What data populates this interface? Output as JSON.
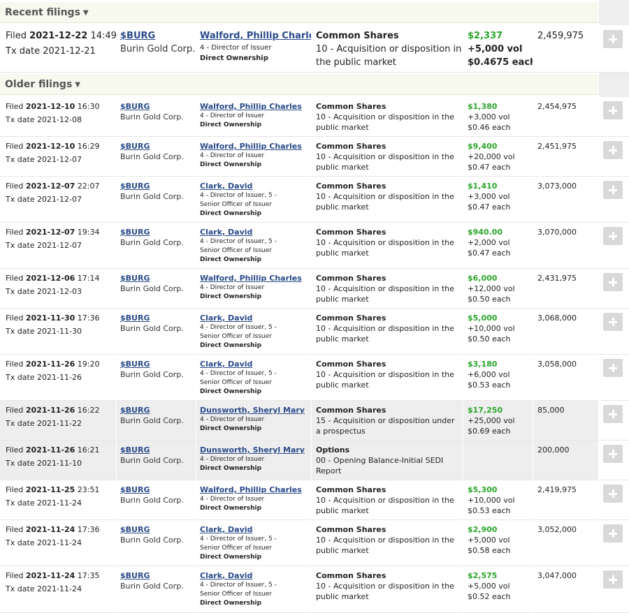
{
  "sections": {
    "recent_label": "Recent filings",
    "older_label": "Older filings"
  },
  "recent": [
    {
      "filed_prefix": "Filed",
      "filed_date": "2021-12-22",
      "filed_time": "14:49",
      "tx_prefix": "Tx date",
      "tx_date": "2021-12-21",
      "ticker": "$BURG",
      "company": "Burin Gold Corp.",
      "insider": "Walford, Phillip Charles",
      "relationship": "4 - Director of Issuer",
      "ownership": "Direct Ownership",
      "security": "Common Shares",
      "transaction": "10 - Acquisition or disposition in the public market",
      "amount": "$2,337",
      "volume": "+5,000 vol",
      "price": "$0.4675 each",
      "holdings": "2,459,975"
    }
  ],
  "older": [
    {
      "filed_prefix": "Filed",
      "filed_date": "2021-12-10",
      "filed_time": "16:30",
      "tx_prefix": "Tx date",
      "tx_date": "2021-12-08",
      "ticker": "$BURG",
      "company": "Burin Gold Corp.",
      "insider": "Walford, Phillip Charles",
      "relationship": "4 - Director of Issuer",
      "ownership": "Direct Ownership",
      "security": "Common Shares",
      "transaction": "10 - Acquisition or disposition in the public market",
      "amount": "$1,380",
      "volume": "+3,000 vol",
      "price": "$0.46 each",
      "holdings": "2,454,975"
    },
    {
      "filed_prefix": "Filed",
      "filed_date": "2021-12-10",
      "filed_time": "16:29",
      "tx_prefix": "Tx date",
      "tx_date": "2021-12-07",
      "ticker": "$BURG",
      "company": "Burin Gold Corp.",
      "insider": "Walford, Phillip Charles",
      "relationship": "4 - Director of Issuer",
      "ownership": "Direct Ownership",
      "security": "Common Shares",
      "transaction": "10 - Acquisition or disposition in the public market",
      "amount": "$9,400",
      "volume": "+20,000 vol",
      "price": "$0.47 each",
      "holdings": "2,451,975"
    },
    {
      "filed_prefix": "Filed",
      "filed_date": "2021-12-07",
      "filed_time": "22:07",
      "tx_prefix": "Tx date",
      "tx_date": "2021-12-07",
      "ticker": "$BURG",
      "company": "Burin Gold Corp.",
      "insider": "Clark, David",
      "relationship": "4 - Director of Issuer, 5 - Senior Officer of Issuer",
      "ownership": "Direct Ownership",
      "security": "Common Shares",
      "transaction": "10 - Acquisition or disposition in the public market",
      "amount": "$1,410",
      "volume": "+3,000 vol",
      "price": "$0.47 each",
      "holdings": "3,073,000"
    },
    {
      "filed_prefix": "Filed",
      "filed_date": "2021-12-07",
      "filed_time": "19:34",
      "tx_prefix": "Tx date",
      "tx_date": "2021-12-07",
      "ticker": "$BURG",
      "company": "Burin Gold Corp.",
      "insider": "Clark, David",
      "relationship": "4 - Director of Issuer, 5 - Senior Officer of Issuer",
      "ownership": "Direct Ownership",
      "security": "Common Shares",
      "transaction": "10 - Acquisition or disposition in the public market",
      "amount": "$940.00",
      "volume": "+2,000 vol",
      "price": "$0.47 each",
      "holdings": "3,070,000"
    },
    {
      "filed_prefix": "Filed",
      "filed_date": "2021-12-06",
      "filed_time": "17:14",
      "tx_prefix": "Tx date",
      "tx_date": "2021-12-03",
      "ticker": "$BURG",
      "company": "Burin Gold Corp.",
      "insider": "Walford, Phillip Charles",
      "relationship": "4 - Director of Issuer",
      "ownership": "Direct Ownership",
      "security": "Common Shares",
      "transaction": "10 - Acquisition or disposition in the public market",
      "amount": "$6,000",
      "volume": "+12,000 vol",
      "price": "$0.50 each",
      "holdings": "2,431,975"
    },
    {
      "filed_prefix": "Filed",
      "filed_date": "2021-11-30",
      "filed_time": "17:36",
      "tx_prefix": "Tx date",
      "tx_date": "2021-11-30",
      "ticker": "$BURG",
      "company": "Burin Gold Corp.",
      "insider": "Clark, David",
      "relationship": "4 - Director of Issuer, 5 - Senior Officer of Issuer",
      "ownership": "Direct Ownership",
      "security": "Common Shares",
      "transaction": "10 - Acquisition or disposition in the public market",
      "amount": "$5,000",
      "volume": "+10,000 vol",
      "price": "$0.50 each",
      "holdings": "3,068,000"
    },
    {
      "filed_prefix": "Filed",
      "filed_date": "2021-11-26",
      "filed_time": "19:20",
      "tx_prefix": "Tx date",
      "tx_date": "2021-11-26",
      "ticker": "$BURG",
      "company": "Burin Gold Corp.",
      "insider": "Clark, David",
      "relationship": "4 - Director of Issuer, 5 - Senior Officer of Issuer",
      "ownership": "Direct Ownership",
      "security": "Common Shares",
      "transaction": "10 - Acquisition or disposition in the public market",
      "amount": "$3,180",
      "volume": "+6,000 vol",
      "price": "$0.53 each",
      "holdings": "3,058,000"
    },
    {
      "filed_prefix": "Filed",
      "filed_date": "2021-11-26",
      "filed_time": "16:22",
      "tx_prefix": "Tx date",
      "tx_date": "2021-11-22",
      "ticker": "$BURG",
      "company": "Burin Gold Corp.",
      "insider": "Dunsworth, Sheryl Mary",
      "relationship": "4 - Director of Issuer",
      "ownership": "Direct Ownership",
      "security": "Common Shares",
      "transaction": "15 - Acquisition or disposition under a prospectus",
      "amount": "$17,250",
      "volume": "+25,000 vol",
      "price": "$0.69 each",
      "holdings": "85,000"
    },
    {
      "filed_prefix": "Filed",
      "filed_date": "2021-11-26",
      "filed_time": "16:21",
      "tx_prefix": "Tx date",
      "tx_date": "2021-11-10",
      "ticker": "$BURG",
      "company": "Burin Gold Corp.",
      "insider": "Dunsworth, Sheryl Mary",
      "relationship": "4 - Director of Issuer",
      "ownership": "Direct Ownership",
      "security": "Options",
      "transaction": "00 - Opening Balance-Initial SEDI Report",
      "amount": "",
      "volume": "",
      "price": "",
      "holdings": "200,000"
    },
    {
      "filed_prefix": "Filed",
      "filed_date": "2021-11-25",
      "filed_time": "23:51",
      "tx_prefix": "Tx date",
      "tx_date": "2021-11-24",
      "ticker": "$BURG",
      "company": "Burin Gold Corp.",
      "insider": "Walford, Phillip Charles",
      "relationship": "4 - Director of Issuer",
      "ownership": "Direct Ownership",
      "security": "Common Shares",
      "transaction": "10 - Acquisition or disposition in the public market",
      "amount": "$5,300",
      "volume": "+10,000 vol",
      "price": "$0.53 each",
      "holdings": "2,419,975"
    },
    {
      "filed_prefix": "Filed",
      "filed_date": "2021-11-24",
      "filed_time": "17:36",
      "tx_prefix": "Tx date",
      "tx_date": "2021-11-24",
      "ticker": "$BURG",
      "company": "Burin Gold Corp.",
      "insider": "Clark, David",
      "relationship": "4 - Director of Issuer, 5 - Senior Officer of Issuer",
      "ownership": "Direct Ownership",
      "security": "Common Shares",
      "transaction": "10 - Acquisition or disposition in the public market",
      "amount": "$2,900",
      "volume": "+5,000 vol",
      "price": "$0.58 each",
      "holdings": "3,052,000"
    },
    {
      "filed_prefix": "Filed",
      "filed_date": "2021-11-24",
      "filed_time": "17:35",
      "tx_prefix": "Tx date",
      "tx_date": "2021-11-24",
      "ticker": "$BURG",
      "company": "Burin Gold Corp.",
      "insider": "Clark, David",
      "relationship": "4 - Director of Issuer, 5 - Senior Officer of Issuer",
      "ownership": "Direct Ownership",
      "security": "Common Shares",
      "transaction": "10 - Acquisition or disposition in the public market",
      "amount": "$2,575",
      "volume": "+5,000 vol",
      "price": "$0.52 each",
      "holdings": "3,047,000"
    }
  ],
  "colors": {
    "link": "#2a4a8a",
    "amount_green": "#2aa52a",
    "header_bg": "#f7f8ee",
    "shaded_row": "#eeeeee",
    "button_bg": "#d9d9d9"
  },
  "icons": {
    "section_toggle": "chevron-down-icon",
    "expand": "plus-icon"
  }
}
